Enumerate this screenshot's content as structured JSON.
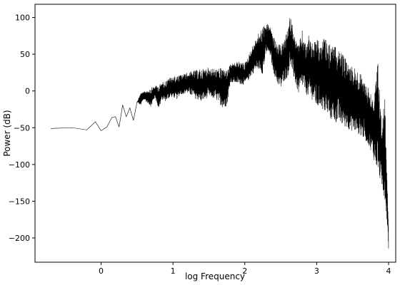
{
  "chart_data": {
    "type": "line",
    "title": "",
    "xlabel": "log Frequency",
    "ylabel": "Power (dB)",
    "xlim": [
      -0.92,
      4.1
    ],
    "ylim": [
      -233,
      118
    ],
    "xticks": [
      0,
      1,
      2,
      3,
      4
    ],
    "xtick_labels": [
      "0",
      "1",
      "2",
      "3",
      "4"
    ],
    "yticks": [
      -200,
      -150,
      -100,
      -50,
      0,
      50,
      100
    ],
    "ytick_labels": [
      "−200",
      "−150",
      "−100",
      "−50",
      "0",
      "50",
      "100"
    ],
    "grid": false,
    "line_color": "#000000",
    "series": [
      {
        "x": [
          -0.7,
          -0.4,
          -0.2,
          -0.08,
          0.0,
          0.08,
          0.15,
          0.2,
          0.25,
          0.3,
          0.35,
          0.4,
          0.45,
          0.5,
          0.55,
          0.6,
          0.65,
          0.7,
          0.75,
          0.8,
          0.85,
          0.9,
          0.95,
          1.0,
          1.05,
          1.1,
          1.2,
          1.3,
          1.4,
          1.5,
          1.6,
          1.7,
          1.75,
          1.8,
          1.9,
          2.0,
          2.05,
          2.1,
          2.15,
          2.2,
          2.25,
          2.3,
          2.35,
          2.4,
          2.45,
          2.5,
          2.55,
          2.6,
          2.63,
          2.67,
          2.7,
          2.75,
          2.8,
          2.85,
          2.9,
          2.95,
          3.0,
          3.05,
          3.1,
          3.15,
          3.2,
          3.3,
          3.4,
          3.5,
          3.6,
          3.7,
          3.75,
          3.8,
          3.85,
          3.9,
          3.95,
          3.98,
          4.0
        ],
        "lo": [
          -51,
          -50,
          -53,
          -42,
          -54,
          -49,
          -36,
          -35,
          -49,
          -19,
          -35,
          -23,
          -40,
          -15,
          -20,
          -12,
          -17,
          -22,
          -8,
          -25,
          -12,
          -14,
          -10,
          -8,
          -12,
          -5,
          -3,
          -10,
          -15,
          -8,
          -12,
          -24,
          -20,
          12,
          10,
          8,
          15,
          22,
          28,
          30,
          22,
          52,
          48,
          25,
          10,
          2,
          14,
          18,
          36,
          22,
          10,
          -5,
          5,
          -4,
          -10,
          -13,
          -25,
          -20,
          -30,
          -35,
          -40,
          -45,
          -50,
          -55,
          -60,
          -70,
          -80,
          -95,
          -110,
          -130,
          -150,
          -180,
          -215
        ],
        "hi": [
          -51,
          -50,
          -53,
          -42,
          -54,
          -49,
          -36,
          -35,
          -49,
          -19,
          -35,
          -23,
          -40,
          -15,
          -2,
          -1,
          2,
          5,
          7,
          8,
          12,
          14,
          18,
          20,
          20,
          22,
          25,
          28,
          30,
          32,
          30,
          32,
          28,
          36,
          40,
          38,
          48,
          60,
          70,
          80,
          88,
          92,
          90,
          75,
          62,
          64,
          68,
          85,
          102,
          88,
          72,
          62,
          83,
          62,
          82,
          60,
          76,
          60,
          72,
          68,
          62,
          58,
          45,
          35,
          25,
          10,
          0,
          -10,
          43,
          -40,
          -10,
          -110,
          -180
        ]
      }
    ]
  }
}
